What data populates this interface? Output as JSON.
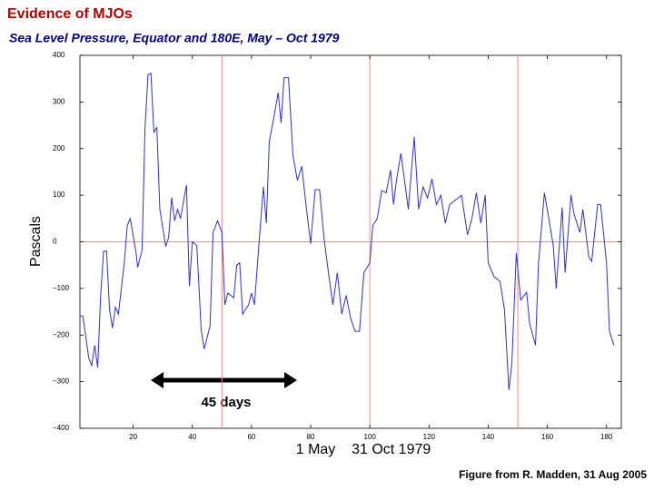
{
  "chart_data": {
    "type": "line",
    "title": "Evidence of MJOs",
    "subtitle": "Sea Level Pressure, Equator and 180E, May – Oct 1979",
    "x_label": "1 May    31 Oct 1979",
    "y_label": "Pascals",
    "annotation": "45 days",
    "credit": "Figure from R. Madden, 31 Aug 2005",
    "color": "#3030d0",
    "x": [
      2,
      3,
      5,
      6,
      7,
      8,
      9,
      10,
      11,
      12,
      13,
      14,
      15,
      17,
      18,
      19,
      21,
      21.5,
      23,
      24,
      25,
      26,
      27,
      28,
      29,
      31,
      32,
      33,
      34,
      35,
      36,
      38,
      39,
      40,
      41.5,
      43,
      44,
      46,
      47,
      48.5,
      50,
      51,
      52,
      54,
      55,
      56,
      57,
      59,
      60,
      61,
      62,
      64,
      65,
      66,
      67.5,
      69,
      70,
      71,
      72.5,
      74,
      75.5,
      77,
      78.5,
      80,
      81.5,
      83,
      84.5,
      86,
      87.5,
      89,
      90.5,
      92,
      93.5,
      95,
      96.5,
      98,
      100,
      101,
      102.5,
      104,
      105.5,
      107,
      108,
      109,
      110.5,
      112,
      113,
      115,
      116.5,
      118,
      119.5,
      121,
      122.5,
      124,
      125.5,
      127,
      129,
      131,
      133,
      134.5,
      136,
      137.5,
      139,
      140,
      142,
      144,
      145.5,
      147,
      148,
      149.5,
      151,
      153,
      154,
      156,
      157,
      159,
      160.5,
      162,
      163,
      165,
      166,
      168,
      169,
      171,
      172,
      174,
      175,
      177,
      178,
      180,
      181,
      182.5
    ],
    "values": [
      -158,
      -160,
      -250,
      -265,
      -222,
      -270,
      -115,
      -20,
      -20,
      -145,
      -185,
      -140,
      -155,
      -45,
      35,
      50,
      -25,
      -55,
      -18,
      245,
      358,
      362,
      235,
      245,
      70,
      -10,
      10,
      95,
      45,
      70,
      50,
      122,
      -95,
      0,
      -8,
      -190,
      -230,
      -180,
      20,
      45,
      20,
      -135,
      -110,
      -120,
      -50,
      -45,
      -155,
      -135,
      -110,
      -135,
      -48,
      118,
      40,
      215,
      265,
      320,
      255,
      352,
      352,
      186,
      132,
      162,
      74,
      -4,
      112,
      112,
      8,
      -66,
      -135,
      -66,
      -155,
      -115,
      -164,
      -192,
      -192,
      -66,
      -45,
      35,
      50,
      110,
      105,
      154,
      80,
      132,
      190,
      118,
      70,
      225,
      70,
      118,
      94,
      135,
      80,
      100,
      40,
      80,
      90,
      100,
      15,
      50,
      105,
      40,
      100,
      -45,
      -75,
      -85,
      -145,
      -318,
      -262,
      -24,
      -125,
      -108,
      -175,
      -222,
      -47,
      105,
      50,
      -8,
      -100,
      74,
      -66,
      100,
      60,
      20,
      70,
      -32,
      -42,
      80,
      80,
      -45,
      -192,
      -222
    ],
    "xlim": [
      2,
      185
    ],
    "ylim": [
      -400,
      400
    ],
    "xticks": [
      20,
      40,
      60,
      80,
      100,
      120,
      140,
      160,
      180
    ],
    "yticks": [
      {
        "value": -400,
        "label": "−400"
      },
      {
        "value": -300,
        "label": "−300"
      },
      {
        "value": -200,
        "label": "−200"
      },
      {
        "value": -100,
        "label": "−100"
      },
      0,
      100,
      200,
      300,
      400
    ],
    "reference_lines": {
      "x": [
        50,
        100,
        150
      ],
      "y": [
        0
      ],
      "color": "#f08c8c"
    }
  }
}
